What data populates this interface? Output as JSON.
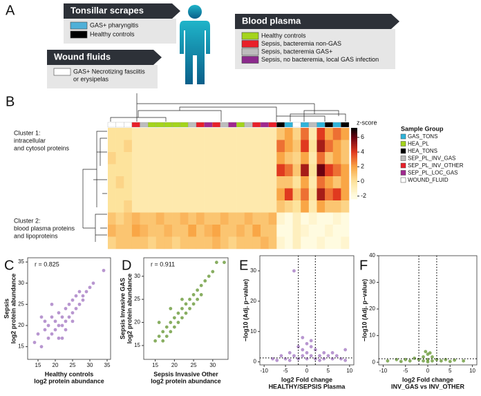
{
  "panel_a": {
    "panel": "A",
    "tonsillar": {
      "title": "Tonsillar scrapes",
      "items": [
        {
          "label": [
            "GAS+ pharyngitis"
          ],
          "color": "#4fb0d8"
        },
        {
          "label": [
            "Healthy controls"
          ],
          "color": "#000000"
        }
      ]
    },
    "wound": {
      "title": "Wound fluids",
      "items": [
        {
          "label": [
            "GAS+ Necrotizing fasciitis",
            "or erysipelas"
          ],
          "color": "#ffffff"
        }
      ]
    },
    "plasma": {
      "title": "Blood plasma",
      "items": [
        {
          "label": [
            "Healthy controls"
          ],
          "color": "#a4d41c"
        },
        {
          "label": [
            "Sepsis, bacteremia non-GAS"
          ],
          "color": "#e8202a"
        },
        {
          "label": [
            "Sepsis, bacteremia GAS+"
          ],
          "color": "#bdbdbd"
        },
        {
          "label": [
            "Sepsis, no bacteremia, local GAS infection"
          ],
          "color": "#8b2a8c"
        }
      ]
    }
  },
  "chart_data": [
    {
      "type": "heatmap",
      "panel": "B",
      "colorbar_label": "z-score",
      "clim": [
        -2.4,
        7.3
      ],
      "colorbar_ticks": [
        -2,
        0,
        2,
        4,
        6
      ],
      "legend_title": "Sample Group",
      "groups": [
        {
          "name": "GAS_TONS",
          "color": "#2fb3d9"
        },
        {
          "name": "HEA_PL",
          "color": "#a4d41c"
        },
        {
          "name": "HEA_TONS",
          "color": "#000000"
        },
        {
          "name": "SEP_PL_INV_GAS",
          "color": "#bdbdbd"
        },
        {
          "name": "SEP_PL_INV_OTHER",
          "color": "#e8202a"
        },
        {
          "name": "SEP_PL_LOC_GAS",
          "color": "#a0288f"
        },
        {
          "name": "WOUND_FLUID",
          "color": "#ffffff"
        }
      ],
      "columns": [
        "WOUND_FLUID",
        "WOUND_FLUID",
        "WOUND_FLUID",
        "SEP_PL_INV_OTHER",
        "SEP_PL_INV_GAS",
        "HEA_PL",
        "HEA_PL",
        "HEA_PL",
        "HEA_PL",
        "HEA_PL",
        "SEP_PL_INV_GAS",
        "SEP_PL_INV_OTHER",
        "SEP_PL_LOC_GAS",
        "SEP_PL_INV_OTHER",
        "SEP_PL_INV_GAS",
        "SEP_PL_LOC_GAS",
        "HEA_PL",
        "SEP_PL_INV_GAS",
        "SEP_PL_INV_OTHER",
        "SEP_PL_LOC_GAS",
        "SEP_PL_INV_OTHER",
        "HEA_TONS",
        "GAS_TONS",
        "WOUND_FLUID",
        "GAS_TONS",
        "SEP_PL_INV_GAS",
        "GAS_TONS",
        "HEA_TONS",
        "GAS_TONS",
        "HEA_TONS"
      ],
      "clusters": [
        [
          "Cluster 1:",
          "intracellular",
          " and cytosol proteins"
        ],
        [
          "Cluster 2:",
          "blood plasma proteins",
          "and lipoproteins"
        ]
      ],
      "values": [
        [
          0,
          0,
          0,
          -0.5,
          -0.5,
          -0.5,
          -0.5,
          -0.5,
          -0.5,
          -0.5,
          -0.5,
          -0.5,
          -0.5,
          -0.5,
          -0.5,
          -0.5,
          -0.5,
          -0.5,
          -0.5,
          -0.5,
          -0.5,
          1,
          2,
          0.5,
          3,
          -0.5,
          4,
          2,
          3,
          2
        ],
        [
          0,
          0,
          0.5,
          -0.5,
          -0.5,
          -0.5,
          -0.5,
          -0.5,
          -0.5,
          -0.5,
          -0.5,
          -0.5,
          -0.5,
          -0.5,
          -0.5,
          -0.5,
          -0.5,
          -0.5,
          -0.5,
          -0.5,
          -0.5,
          3,
          2,
          1,
          4,
          0,
          5,
          3,
          2,
          1
        ],
        [
          0.5,
          0,
          0,
          -0.5,
          -0.5,
          -0.5,
          -0.5,
          -0.5,
          -0.5,
          -0.5,
          -0.5,
          -0.5,
          -0.5,
          -0.5,
          -0.5,
          -0.5,
          -0.5,
          -0.5,
          -0.5,
          -0.5,
          -0.5,
          2,
          1,
          0.5,
          2,
          -0.5,
          3,
          1,
          2,
          1
        ],
        [
          0,
          0,
          0,
          -0.5,
          -0.5,
          -0.5,
          -0.5,
          -0.5,
          -0.5,
          -0.5,
          -0.5,
          -0.5,
          -0.5,
          -0.5,
          -0.5,
          -0.5,
          -0.5,
          -0.5,
          -0.5,
          -0.5,
          -0.5,
          4,
          3,
          1,
          5,
          0,
          6,
          4,
          3,
          2
        ],
        [
          0,
          0.5,
          0,
          -0.5,
          -0.5,
          -0.5,
          -0.5,
          -0.5,
          -0.5,
          -0.5,
          -0.5,
          -0.5,
          -0.5,
          -0.5,
          -0.5,
          -0.5,
          -0.5,
          -0.5,
          -0.5,
          -0.5,
          -0.5,
          1,
          1,
          0,
          2,
          -0.5,
          3,
          2,
          1,
          2
        ],
        [
          0,
          0,
          0,
          -0.5,
          -0.5,
          -0.5,
          -0.5,
          -0.5,
          -0.5,
          -0.5,
          -0.5,
          -0.5,
          -0.5,
          -0.5,
          -0.5,
          -0.5,
          -0.5,
          -0.5,
          -0.5,
          -0.5,
          -0.5,
          2,
          4,
          1,
          3,
          0,
          5,
          3,
          4,
          2
        ],
        [
          0,
          0,
          0.5,
          -0.5,
          -0.5,
          -0.5,
          -0.5,
          -0.5,
          -0.5,
          -0.5,
          -0.5,
          -0.5,
          -0.5,
          -0.5,
          -0.5,
          -0.5,
          -0.5,
          -0.5,
          -0.5,
          -0.5,
          -0.5,
          1,
          0.5,
          0,
          2,
          -0.5,
          2,
          1,
          1,
          0.5
        ],
        [
          1,
          0.5,
          1,
          1.5,
          1,
          1,
          1.5,
          1,
          1,
          1.5,
          1,
          1.5,
          1,
          1,
          1.5,
          1,
          1,
          1.5,
          1,
          1,
          1.5,
          -1.5,
          -2,
          -1,
          -2,
          -1.5,
          -2,
          -2,
          -1.5,
          -2
        ],
        [
          1.5,
          1,
          1,
          2,
          1.5,
          1,
          1,
          1.5,
          1,
          1,
          2,
          1,
          1.5,
          2,
          1,
          1,
          1.5,
          1,
          2,
          1,
          1,
          -2,
          -2,
          -1,
          -1.5,
          -2,
          -2,
          -1.5,
          -2,
          -2
        ],
        [
          0.5,
          1,
          1,
          1,
          1,
          0.5,
          1,
          1,
          0.5,
          1,
          1,
          1,
          1,
          1.5,
          1,
          0.5,
          1,
          1,
          1,
          1.5,
          1,
          -1.5,
          -2,
          -1,
          -2,
          -2,
          -1.5,
          -2,
          -2,
          -1.5
        ]
      ]
    },
    {
      "type": "scatter",
      "panel": "C",
      "annotation": "r = 0.825",
      "color": "#a67cc4",
      "x_label": [
        "Healthy controls",
        "log2 protein abundance"
      ],
      "y_label": [
        "Sepsis",
        "log2 protein abundance"
      ],
      "xlim": [
        12,
        36
      ],
      "ylim": [
        12,
        36
      ],
      "xticks": [
        15,
        20,
        25,
        30,
        35
      ],
      "yticks": [
        15,
        20,
        25,
        30,
        35
      ],
      "x": [
        14,
        15,
        16,
        17,
        17,
        18,
        18,
        19,
        19,
        20,
        20,
        21,
        21,
        21,
        22,
        22,
        23,
        23,
        23,
        24,
        24,
        25,
        25,
        25,
        26,
        26,
        27,
        27,
        28,
        28,
        29,
        30,
        31,
        16,
        19,
        22,
        34
      ],
      "y": [
        16,
        18,
        15,
        19,
        21,
        17,
        20,
        18,
        22,
        19,
        21,
        17,
        20,
        23,
        20,
        22,
        21,
        19,
        24,
        22,
        25,
        23,
        21,
        26,
        24,
        27,
        25,
        28,
        27,
        26,
        28,
        29,
        30,
        22,
        25,
        17,
        33
      ]
    },
    {
      "type": "scatter",
      "panel": "D",
      "annotation": "r = 0.911",
      "color": "#6a9a3a",
      "x_label": [
        "Sepsis Invasive Other",
        "log2 protein abundance"
      ],
      "y_label": [
        "Sepsis Invasive GAS",
        "log2 protein abundance"
      ],
      "xlim": [
        12,
        34
      ],
      "ylim": [
        12,
        34
      ],
      "xticks": [
        15,
        20,
        25,
        30
      ],
      "yticks": [
        15,
        20,
        25,
        30
      ],
      "x": [
        15,
        16,
        17,
        17,
        18,
        18,
        19,
        19,
        20,
        20,
        21,
        21,
        22,
        22,
        23,
        23,
        24,
        24,
        25,
        25,
        26,
        26,
        27,
        27,
        28,
        29,
        30,
        16,
        19,
        22,
        31,
        33
      ],
      "y": [
        16,
        17,
        18,
        16,
        19,
        17,
        20,
        18,
        21,
        19,
        22,
        20,
        23,
        21,
        24,
        22,
        25,
        23,
        26,
        24,
        27,
        25,
        28,
        26,
        29,
        30,
        31,
        20,
        23,
        25,
        33,
        33
      ]
    },
    {
      "type": "scatter",
      "panel": "E",
      "color": "#a67cc4",
      "thresholds": {
        "x": [
          -2,
          2
        ],
        "y": 1.3
      },
      "x_label": [
        "log2 Fold change",
        "HEALTHY/SEPSIS Plasma"
      ],
      "y_label": [
        "−log10 (Adj. p−value)"
      ],
      "xlim": [
        -11,
        11
      ],
      "ylim": [
        -1,
        35
      ],
      "xticks": [
        -10,
        -5,
        0,
        5,
        10
      ],
      "yticks": [
        0,
        10,
        20,
        30
      ],
      "x": [
        -8,
        -7,
        -6,
        -5,
        -4,
        -4,
        -3,
        -3,
        -2,
        -2,
        -1,
        -1,
        0,
        0,
        0,
        1,
        1,
        2,
        2,
        3,
        3,
        4,
        4,
        5,
        6,
        6,
        7,
        8,
        9,
        9,
        -1,
        1
      ],
      "y": [
        1,
        0.5,
        2,
        1,
        3,
        0.5,
        2,
        30,
        5,
        1,
        4,
        2,
        6,
        3,
        1,
        5,
        2,
        4,
        1,
        2,
        0.5,
        3,
        1,
        2,
        1,
        3,
        2,
        1,
        0.5,
        4,
        8,
        7
      ]
    },
    {
      "type": "scatter",
      "panel": "F",
      "color": "#6a9a3a",
      "thresholds": {
        "x": [
          -2,
          2
        ],
        "y": 1.3
      },
      "x_label": [
        "log2 Fold change",
        "INV_GAS vs INV_OTHER"
      ],
      "y_label": [
        "−log10 (Adj. p−value)"
      ],
      "xlim": [
        -11,
        11
      ],
      "ylim": [
        -1,
        40
      ],
      "xticks": [
        -10,
        -5,
        0,
        5,
        10
      ],
      "yticks": [
        0,
        10,
        20,
        30,
        40
      ],
      "x": [
        -9,
        -7,
        -6,
        -5,
        -4,
        -3,
        -2,
        -1,
        -1,
        0,
        0,
        0,
        1,
        1,
        2,
        3,
        4,
        5,
        6,
        8,
        -0.5,
        0.5
      ],
      "y": [
        0.5,
        1,
        0.3,
        1,
        0.5,
        1.5,
        1,
        2,
        0.5,
        3,
        1,
        0.2,
        2,
        0.5,
        1,
        0.5,
        1,
        0.3,
        0.8,
        0.5,
        4,
        3.5
      ]
    }
  ]
}
